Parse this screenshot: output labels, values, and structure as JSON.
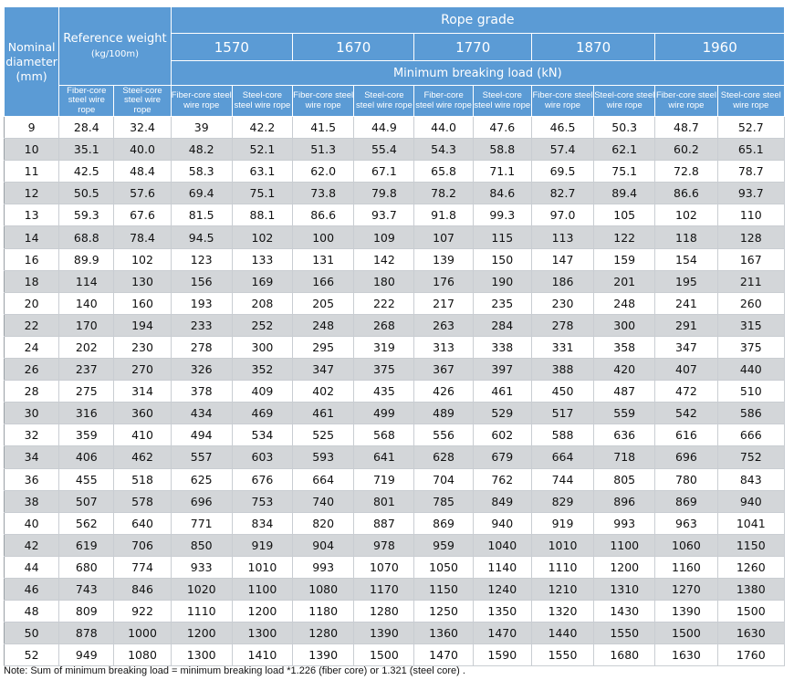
{
  "headers": {
    "nominal_diameter": "Nominal diameter",
    "nominal_unit": "(mm)",
    "reference_weight": "Reference weight",
    "reference_unit": "(kg/100m)",
    "rope_grade": "Rope grade",
    "grades": [
      "1570",
      "1670",
      "1770",
      "1870",
      "1960"
    ],
    "min_breaking_load": "Minimum breaking load (kN)",
    "fiber_core": "Fiber-core steel wire rope",
    "steel_core": "Steel-core steel wire rope"
  },
  "rows": [
    [
      "9",
      "28.4",
      "32.4",
      "39",
      "42.2",
      "41.5",
      "44.9",
      "44.0",
      "47.6",
      "46.5",
      "50.3",
      "48.7",
      "52.7"
    ],
    [
      "10",
      "35.1",
      "40.0",
      "48.2",
      "52.1",
      "51.3",
      "55.4",
      "54.3",
      "58.8",
      "57.4",
      "62.1",
      "60.2",
      "65.1"
    ],
    [
      "11",
      "42.5",
      "48.4",
      "58.3",
      "63.1",
      "62.0",
      "67.1",
      "65.8",
      "71.1",
      "69.5",
      "75.1",
      "72.8",
      "78.7"
    ],
    [
      "12",
      "50.5",
      "57.6",
      "69.4",
      "75.1",
      "73.8",
      "79.8",
      "78.2",
      "84.6",
      "82.7",
      "89.4",
      "86.6",
      "93.7"
    ],
    [
      "13",
      "59.3",
      "67.6",
      "81.5",
      "88.1",
      "86.6",
      "93.7",
      "91.8",
      "99.3",
      "97.0",
      "105",
      "102",
      "110"
    ],
    [
      "14",
      "68.8",
      "78.4",
      "94.5",
      "102",
      "100",
      "109",
      "107",
      "115",
      "113",
      "122",
      "118",
      "128"
    ],
    [
      "16",
      "89.9",
      "102",
      "123",
      "133",
      "131",
      "142",
      "139",
      "150",
      "147",
      "159",
      "154",
      "167"
    ],
    [
      "18",
      "114",
      "130",
      "156",
      "169",
      "166",
      "180",
      "176",
      "190",
      "186",
      "201",
      "195",
      "211"
    ],
    [
      "20",
      "140",
      "160",
      "193",
      "208",
      "205",
      "222",
      "217",
      "235",
      "230",
      "248",
      "241",
      "260"
    ],
    [
      "22",
      "170",
      "194",
      "233",
      "252",
      "248",
      "268",
      "263",
      "284",
      "278",
      "300",
      "291",
      "315"
    ],
    [
      "24",
      "202",
      "230",
      "278",
      "300",
      "295",
      "319",
      "313",
      "338",
      "331",
      "358",
      "347",
      "375"
    ],
    [
      "26",
      "237",
      "270",
      "326",
      "352",
      "347",
      "375",
      "367",
      "397",
      "388",
      "420",
      "407",
      "440"
    ],
    [
      "28",
      "275",
      "314",
      "378",
      "409",
      "402",
      "435",
      "426",
      "461",
      "450",
      "487",
      "472",
      "510"
    ],
    [
      "30",
      "316",
      "360",
      "434",
      "469",
      "461",
      "499",
      "489",
      "529",
      "517",
      "559",
      "542",
      "586"
    ],
    [
      "32",
      "359",
      "410",
      "494",
      "534",
      "525",
      "568",
      "556",
      "602",
      "588",
      "636",
      "616",
      "666"
    ],
    [
      "34",
      "406",
      "462",
      "557",
      "603",
      "593",
      "641",
      "628",
      "679",
      "664",
      "718",
      "696",
      "752"
    ],
    [
      "36",
      "455",
      "518",
      "625",
      "676",
      "664",
      "719",
      "704",
      "762",
      "744",
      "805",
      "780",
      "843"
    ],
    [
      "38",
      "507",
      "578",
      "696",
      "753",
      "740",
      "801",
      "785",
      "849",
      "829",
      "896",
      "869",
      "940"
    ],
    [
      "40",
      "562",
      "640",
      "771",
      "834",
      "820",
      "887",
      "869",
      "940",
      "919",
      "993",
      "963",
      "1041"
    ],
    [
      "42",
      "619",
      "706",
      "850",
      "919",
      "904",
      "978",
      "959",
      "1040",
      "1010",
      "1100",
      "1060",
      "1150"
    ],
    [
      "44",
      "680",
      "774",
      "933",
      "1010",
      "993",
      "1070",
      "1050",
      "1140",
      "1110",
      "1200",
      "1160",
      "1260"
    ],
    [
      "46",
      "743",
      "846",
      "1020",
      "1100",
      "1080",
      "1170",
      "1150",
      "1240",
      "1210",
      "1310",
      "1270",
      "1380"
    ],
    [
      "48",
      "809",
      "922",
      "1110",
      "1200",
      "1180",
      "1280",
      "1250",
      "1350",
      "1320",
      "1430",
      "1390",
      "1500"
    ],
    [
      "50",
      "878",
      "1000",
      "1200",
      "1300",
      "1280",
      "1390",
      "1360",
      "1470",
      "1440",
      "1550",
      "1500",
      "1630"
    ],
    [
      "52",
      "949",
      "1080",
      "1300",
      "1410",
      "1390",
      "1500",
      "1470",
      "1590",
      "1550",
      "1680",
      "1630",
      "1760"
    ]
  ],
  "note": "Note: Sum of minimum breaking load = minimum breaking load *1.226 (fiber core) or 1.321 (steel core) ."
}
